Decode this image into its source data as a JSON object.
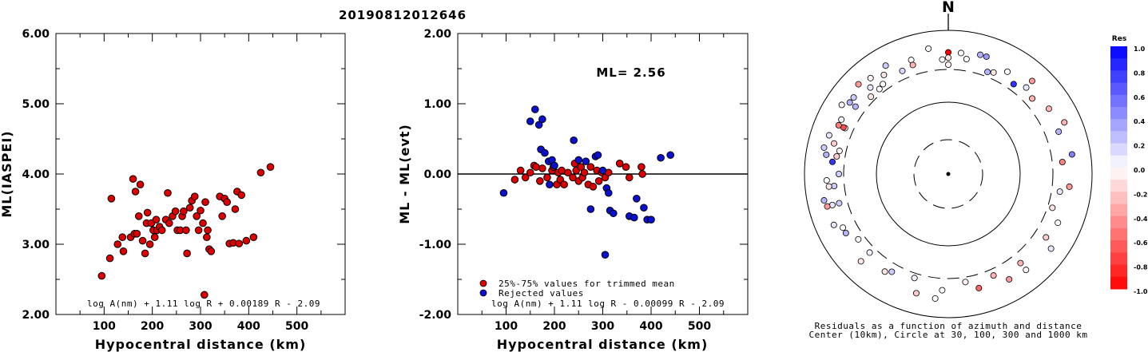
{
  "title": "20190812012646",
  "colors": {
    "red": "#dd0000",
    "blue": "#0a10d0",
    "axis": "#000000"
  },
  "chart_data": [
    {
      "type": "scatter",
      "xlabel": "Hypocentral distance (km)",
      "ylabel": "ML(IASPEI)",
      "xlim": [
        0,
        600
      ],
      "ylim": [
        2.0,
        6.0
      ],
      "x_ticks": [
        "100",
        "200",
        "300",
        "400",
        "500"
      ],
      "y_ticks": [
        "2.00",
        "3.00",
        "4.00",
        "5.00",
        "6.00"
      ],
      "formula": "log A(nm) + 1.11 log R + 0.00189 R - 2.09",
      "series": [
        {
          "color": "red",
          "points": [
            [
              95,
              2.55
            ],
            [
              112,
              2.8
            ],
            [
              115,
              3.65
            ],
            [
              128,
              3.0
            ],
            [
              138,
              3.1
            ],
            [
              140,
              2.9
            ],
            [
              155,
              3.1
            ],
            [
              160,
              3.93
            ],
            [
              163,
              3.15
            ],
            [
              165,
              3.75
            ],
            [
              168,
              3.15
            ],
            [
              172,
              3.4
            ],
            [
              175,
              3.85
            ],
            [
              180,
              3.05
            ],
            [
              185,
              2.87
            ],
            [
              188,
              3.3
            ],
            [
              190,
              3.45
            ],
            [
              195,
              3.0
            ],
            [
              198,
              3.3
            ],
            [
              202,
              3.2
            ],
            [
              205,
              3.1
            ],
            [
              208,
              3.35
            ],
            [
              210,
              3.2
            ],
            [
              215,
              3.25
            ],
            [
              220,
              3.2
            ],
            [
              228,
              3.35
            ],
            [
              232,
              3.73
            ],
            [
              235,
              3.3
            ],
            [
              242,
              3.4
            ],
            [
              248,
              3.47
            ],
            [
              252,
              3.2
            ],
            [
              258,
              3.2
            ],
            [
              262,
              3.4
            ],
            [
              265,
              3.47
            ],
            [
              270,
              3.2
            ],
            [
              272,
              2.87
            ],
            [
              278,
              3.52
            ],
            [
              282,
              3.62
            ],
            [
              288,
              3.68
            ],
            [
              292,
              3.4
            ],
            [
              296,
              3.2
            ],
            [
              300,
              3.48
            ],
            [
              305,
              3.3
            ],
            [
              308,
              2.28
            ],
            [
              310,
              3.6
            ],
            [
              313,
              3.1
            ],
            [
              315,
              3.2
            ],
            [
              318,
              2.93
            ],
            [
              322,
              2.9
            ],
            [
              340,
              3.68
            ],
            [
              345,
              3.4
            ],
            [
              350,
              3.65
            ],
            [
              355,
              3.6
            ],
            [
              360,
              3.01
            ],
            [
              368,
              3.02
            ],
            [
              372,
              3.5
            ],
            [
              376,
              3.75
            ],
            [
              380,
              3.01
            ],
            [
              385,
              3.7
            ],
            [
              395,
              3.05
            ],
            [
              410,
              3.1
            ],
            [
              425,
              4.02
            ],
            [
              445,
              4.1
            ]
          ]
        }
      ]
    },
    {
      "type": "scatter",
      "xlabel": "Hypocentral distance (km)",
      "ylabel": "ML - ML(evt)",
      "xlim": [
        0,
        600
      ],
      "ylim": [
        -2.0,
        2.0
      ],
      "x_ticks": [
        "100",
        "200",
        "300",
        "400",
        "500"
      ],
      "y_ticks": [
        "-2.00",
        "-1.00",
        "0.00",
        "1.00",
        "2.00"
      ],
      "annotation": "ML= 2.56",
      "formula": "log A(nm) + 1.11 log R - 0.00099 R - 2.09",
      "legend": [
        "25%-75% values for trimmed mean",
        "Rejected values"
      ],
      "legend_position": "bottom-left",
      "series": [
        {
          "name": "25%-75% values for trimmed mean",
          "color": "red",
          "points": [
            [
              118,
              -0.08
            ],
            [
              130,
              0.05
            ],
            [
              140,
              -0.05
            ],
            [
              150,
              0.02
            ],
            [
              158,
              0.12
            ],
            [
              162,
              0.1
            ],
            [
              170,
              -0.1
            ],
            [
              175,
              0.08
            ],
            [
              185,
              -0.05
            ],
            [
              195,
              0.05
            ],
            [
              198,
              0.1
            ],
            [
              205,
              -0.15
            ],
            [
              208,
              0.02
            ],
            [
              212,
              -0.08
            ],
            [
              215,
              0.05
            ],
            [
              220,
              -0.15
            ],
            [
              228,
              0.02
            ],
            [
              238,
              -0.05
            ],
            [
              242,
              0.15
            ],
            [
              245,
              0.05
            ],
            [
              250,
              -0.1
            ],
            [
              255,
              0.1
            ],
            [
              258,
              -0.05
            ],
            [
              262,
              0.02
            ],
            [
              270,
              -0.15
            ],
            [
              275,
              0.1
            ],
            [
              280,
              -0.18
            ],
            [
              288,
              0.05
            ],
            [
              292,
              -0.1
            ],
            [
              298,
              0.02
            ],
            [
              305,
              -0.05
            ],
            [
              312,
              0.02
            ],
            [
              335,
              0.15
            ],
            [
              348,
              0.1
            ],
            [
              355,
              -0.05
            ],
            [
              380,
              0.1
            ],
            [
              382,
              0.0
            ]
          ]
        },
        {
          "name": "Rejected values",
          "color": "blue",
          "points": [
            [
              95,
              -0.27
            ],
            [
              150,
              0.75
            ],
            [
              160,
              0.92
            ],
            [
              168,
              0.7
            ],
            [
              172,
              0.35
            ],
            [
              175,
              0.78
            ],
            [
              180,
              0.3
            ],
            [
              188,
              0.18
            ],
            [
              190,
              -0.15
            ],
            [
              195,
              0.2
            ],
            [
              200,
              0.12
            ],
            [
              240,
              0.48
            ],
            [
              250,
              0.2
            ],
            [
              265,
              0.18
            ],
            [
              275,
              -0.5
            ],
            [
              285,
              0.25
            ],
            [
              290,
              0.27
            ],
            [
              300,
              0.05
            ],
            [
              305,
              -1.15
            ],
            [
              308,
              -0.2
            ],
            [
              312,
              -0.27
            ],
            [
              315,
              -0.52
            ],
            [
              322,
              -0.56
            ],
            [
              355,
              -0.6
            ],
            [
              365,
              -0.62
            ],
            [
              370,
              -0.35
            ],
            [
              385,
              -0.48
            ],
            [
              392,
              -0.65
            ],
            [
              400,
              -0.65
            ],
            [
              420,
              0.23
            ],
            [
              440,
              0.27
            ]
          ]
        }
      ]
    },
    {
      "type": "scatter",
      "subtype": "polar",
      "north_label": "N",
      "caption": [
        "Residuals as a function of azimuth and distance",
        "Center (10km), Circle at 30, 100, 300 and 1000 km"
      ],
      "colorbar": {
        "title": "Res",
        "labels": [
          "1.0",
          "0.8",
          "0.6",
          "0.4",
          "0.2",
          "0.0",
          "-0.2",
          "-0.4",
          "-0.6",
          "-0.8",
          "-1.0"
        ]
      },
      "points": [
        [
          -54,
          0.05
        ],
        [
          -49,
          -0.1
        ],
        [
          -45,
          -0.1
        ],
        [
          -42,
          0.0
        ],
        [
          -39,
          0.0
        ],
        [
          -38,
          0.1
        ],
        [
          -35,
          0.2
        ],
        [
          -35,
          0.1
        ],
        [
          -34,
          0.3
        ],
        [
          -32,
          0.2
        ],
        [
          -31,
          0.0
        ],
        [
          -30,
          0.2
        ],
        [
          -28,
          0.8
        ],
        [
          -27,
          0.3
        ],
        [
          -26,
          -0.05
        ],
        [
          -25,
          -0.2
        ],
        [
          -24,
          0.1
        ],
        [
          -22,
          0.0
        ],
        [
          -21,
          0.05
        ],
        [
          -19,
          -0.05
        ],
        [
          -18,
          0.3
        ],
        [
          -17,
          0.2
        ],
        [
          -15,
          -0.1
        ],
        [
          -14,
          0.1
        ],
        [
          -13,
          -0.05
        ],
        [
          -12,
          0.0
        ],
        [
          -11,
          -0.1
        ],
        [
          -10,
          0.2
        ],
        [
          -8,
          0.15
        ],
        [
          -6,
          0.0
        ],
        [
          -3,
          0.0
        ],
        [
          -1,
          0.0
        ],
        [
          0,
          -1.0
        ],
        [
          0,
          -0.05
        ],
        [
          3,
          0.0
        ],
        [
          5,
          0.3
        ],
        [
          8,
          -0.1
        ],
        [
          10,
          0.0
        ],
        [
          14,
          -0.4
        ],
        [
          16,
          -0.3
        ],
        [
          19,
          -0.3
        ],
        [
          22,
          -0.3
        ],
        [
          28,
          -0.5
        ],
        [
          32,
          -0.4
        ],
        [
          36,
          -0.1
        ],
        [
          41,
          -0.2
        ],
        [
          47,
          -0.05
        ],
        [
          52,
          -0.3
        ],
        [
          55,
          -0.6
        ],
        [
          62,
          0.0
        ],
        [
          70,
          0.2
        ],
        [
          88,
          -0.1
        ],
        [
          94,
          0.2
        ],
        [
          98,
          -0.7
        ],
        [
          102,
          0.3
        ],
        [
          107,
          0.0
        ],
        [
          120,
          -0.1
        ],
        [
          126,
          0.4
        ],
        [
          132,
          0.8
        ],
        [
          143,
          0.3
        ],
        [
          147,
          0.5
        ],
        [
          153,
          0.1
        ],
        [
          158,
          0.0
        ],
        [
          162,
          0.1
        ],
        [
          167,
          -0.3
        ],
        [
          170,
          -0.4
        ],
        [
          177,
          -0.05
        ],
        [
          181,
          0.0
        ],
        [
          185,
          -0.2
        ],
        [
          195,
          0.05
        ],
        [
          200,
          0.3
        ],
        [
          205,
          -0.4
        ],
        [
          213,
          -0.2
        ],
        [
          218,
          -0.5
        ],
        [
          225,
          -0.4
        ],
        [
          234,
          -0.3
        ],
        [
          242,
          0.0
        ],
        [
          247,
          0.3
        ],
        [
          254,
          0.1
        ]
      ]
    }
  ]
}
